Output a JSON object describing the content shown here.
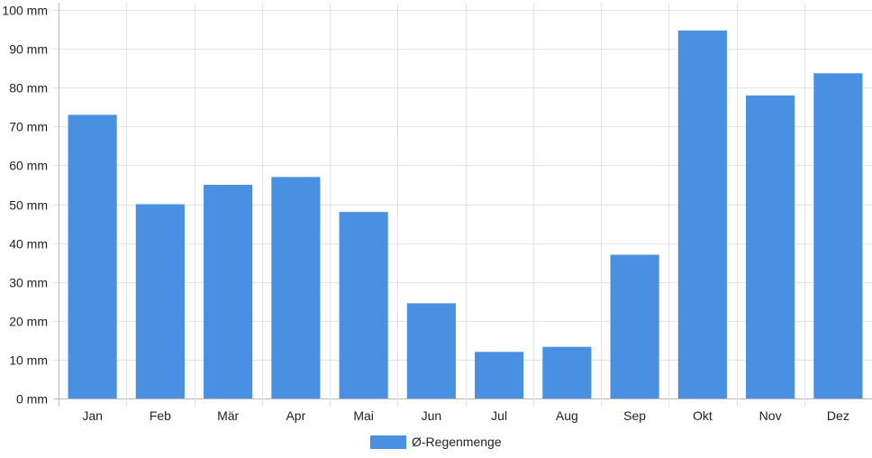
{
  "chart_data": {
    "type": "bar",
    "categories": [
      "Jan",
      "Feb",
      "Mär",
      "Apr",
      "Mai",
      "Jun",
      "Jul",
      "Aug",
      "Sep",
      "Okt",
      "Nov",
      "Dez"
    ],
    "series": [
      {
        "name": "Ø-Regenmenge",
        "color": "#4a90e2",
        "values": [
          73,
          50,
          55,
          57,
          48,
          24.5,
          12,
          13.3,
          37,
          94.7,
          78,
          83.7
        ]
      }
    ],
    "ylim": [
      0,
      100
    ],
    "yticks": [
      0,
      10,
      20,
      30,
      40,
      50,
      60,
      70,
      80,
      90,
      100
    ],
    "ytick_labels": [
      "0 mm",
      "10 mm",
      "20 mm",
      "30 mm",
      "40 mm",
      "50 mm",
      "60 mm",
      "70 mm",
      "80 mm",
      "90 mm",
      "100 mm"
    ],
    "grid": true,
    "legend": {
      "position": "bottom",
      "label": "Ø-Regenmenge"
    },
    "title": "",
    "xlabel": "",
    "ylabel": ""
  }
}
